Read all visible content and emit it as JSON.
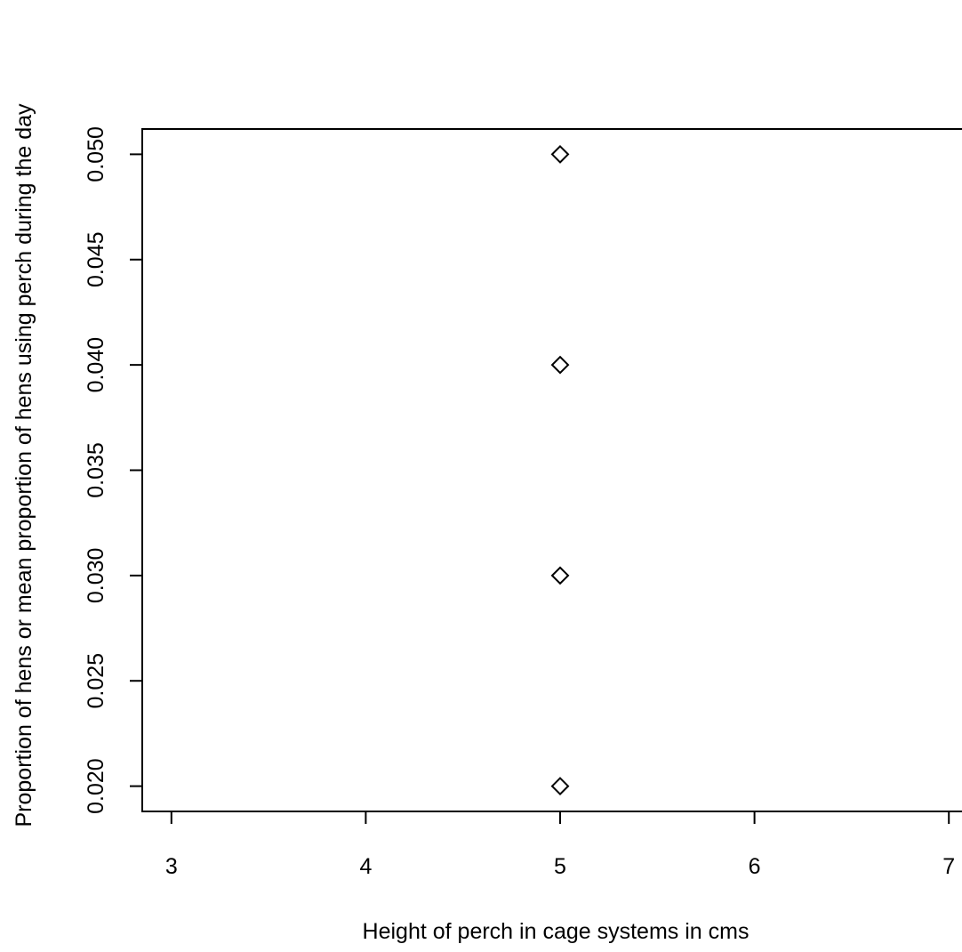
{
  "chart_data": {
    "type": "scatter",
    "title": "",
    "xlabel": "Height of perch in cage systems in cms",
    "ylabel": "Proportion of hens or mean proportion of hens using perch during the day",
    "xlim": [
      2.85,
      7.15
    ],
    "ylim": [
      0.0188,
      0.0512
    ],
    "x_ticks": [
      {
        "value": 3,
        "label": "3"
      },
      {
        "value": 4,
        "label": "4"
      },
      {
        "value": 5,
        "label": "5"
      },
      {
        "value": 6,
        "label": "6"
      },
      {
        "value": 7,
        "label": "7"
      }
    ],
    "y_ticks": [
      {
        "value": 0.02,
        "label": "0.020"
      },
      {
        "value": 0.025,
        "label": "0.025"
      },
      {
        "value": 0.03,
        "label": "0.030"
      },
      {
        "value": 0.035,
        "label": "0.035"
      },
      {
        "value": 0.04,
        "label": "0.040"
      },
      {
        "value": 0.045,
        "label": "0.045"
      },
      {
        "value": 0.05,
        "label": "0.050"
      }
    ],
    "grid": false,
    "marker": "diamond-open",
    "points": [
      {
        "x": 5,
        "y": 0.05
      },
      {
        "x": 5,
        "y": 0.04
      },
      {
        "x": 5,
        "y": 0.03
      },
      {
        "x": 5,
        "y": 0.02
      }
    ]
  }
}
